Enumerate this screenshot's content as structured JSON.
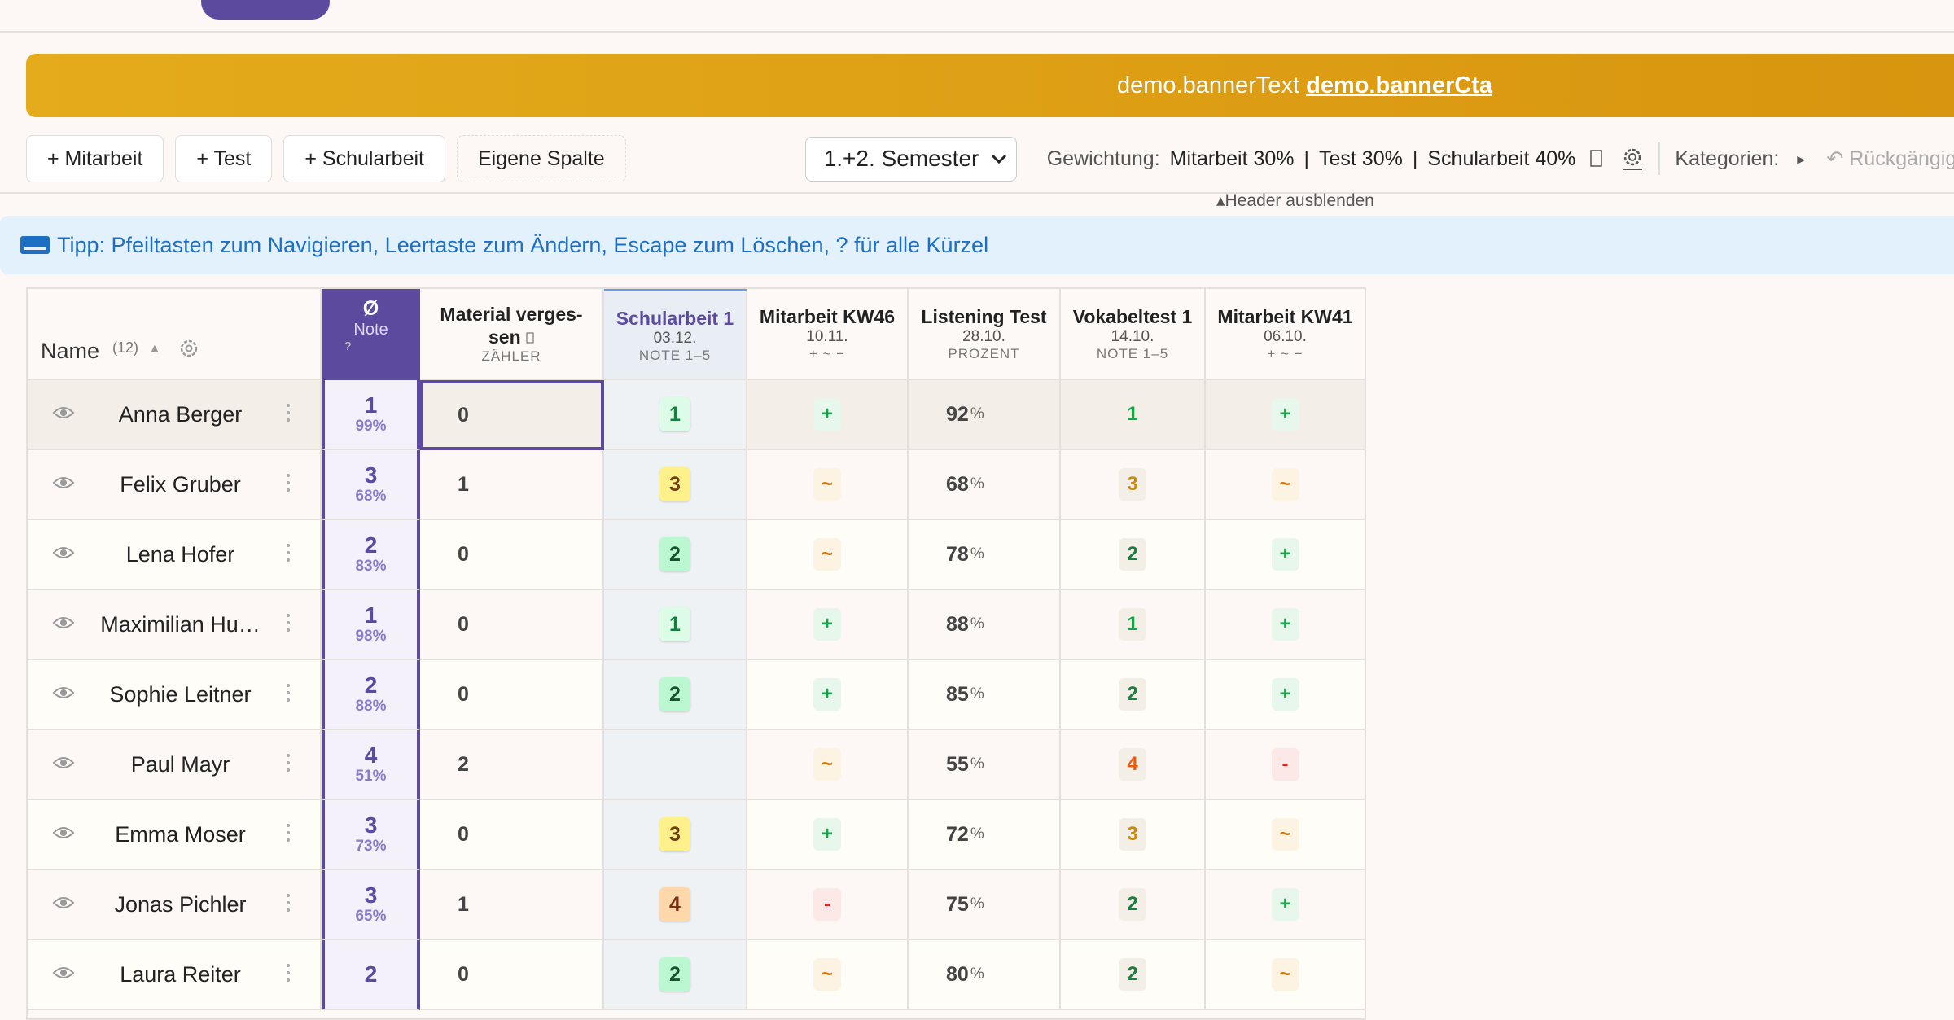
{
  "banner": {
    "text": "demo.bannerText",
    "cta": "demo.bannerCta"
  },
  "toolbar": {
    "buttons": [
      "+ Mitarbeit",
      "+ Test",
      "+ Schularbeit",
      "Eigene Spalte"
    ],
    "semester": "1.+2. Semester",
    "weighting_label": "Gewichtung:",
    "weights": [
      "Mitarbeit 30%",
      "Test 30%",
      "Schularbeit 40%"
    ],
    "separator": "|",
    "categories_label": "Kategorien:",
    "categories_toggle": "▸",
    "undo": "↶ Rückgängig"
  },
  "hide_header": "▴Header ausblenden",
  "tip": "Tipp: Pfeiltasten zum Navigieren, Leertaste zum Ändern, Escape zum Löschen, ? für alle Kürzel",
  "table": {
    "name_header": "Name",
    "count": "(12)",
    "sort": "▲",
    "average": {
      "symbol": "Ø",
      "label": "Note",
      "help": "?"
    },
    "columns": [
      {
        "title": "Material verges-sen",
        "date": null,
        "kind": "ZÄHLER"
      },
      {
        "title": "Schularbeit 1",
        "date": "03.12.",
        "kind": "NOTE 1–5"
      },
      {
        "title": "Mitarbeit KW46",
        "date": "10.11.",
        "kind": "+ ~ −"
      },
      {
        "title": "Listening Test",
        "date": "28.10.",
        "kind": "PROZENT"
      },
      {
        "title": "Vokabeltest 1",
        "date": "14.10.",
        "kind": "NOTE 1–5"
      },
      {
        "title": "Mitarbeit KW41",
        "date": "06.10.",
        "kind": "+ ~ −"
      }
    ],
    "percent_unit": "%",
    "rows": [
      {
        "name": "Anna Berger",
        "grade": 1,
        "percent": "99%",
        "cells": [
          0,
          1,
          "+",
          92,
          1,
          "+"
        ]
      },
      {
        "name": "Felix Gruber",
        "grade": 3,
        "percent": "68%",
        "cells": [
          1,
          3,
          "~",
          68,
          3,
          "~"
        ]
      },
      {
        "name": "Lena Hofer",
        "grade": 2,
        "percent": "83%",
        "cells": [
          0,
          2,
          "~",
          78,
          2,
          "+"
        ]
      },
      {
        "name": "Maximilian Hu…",
        "grade": 1,
        "percent": "98%",
        "cells": [
          0,
          1,
          "+",
          88,
          1,
          "+"
        ]
      },
      {
        "name": "Sophie Leitner",
        "grade": 2,
        "percent": "88%",
        "cells": [
          0,
          2,
          "+",
          85,
          2,
          "+"
        ]
      },
      {
        "name": "Paul Mayr",
        "grade": 4,
        "percent": "51%",
        "cells": [
          2,
          null,
          "~",
          55,
          4,
          "-"
        ]
      },
      {
        "name": "Emma Moser",
        "grade": 3,
        "percent": "73%",
        "cells": [
          0,
          3,
          "+",
          72,
          3,
          "~"
        ]
      },
      {
        "name": "Jonas Pichler",
        "grade": 3,
        "percent": "65%",
        "cells": [
          1,
          4,
          "-",
          75,
          2,
          "+"
        ]
      },
      {
        "name": "Laura Reiter",
        "grade": 2,
        "percent": null,
        "cells": [
          0,
          2,
          "~",
          80,
          2,
          "~"
        ]
      }
    ]
  }
}
